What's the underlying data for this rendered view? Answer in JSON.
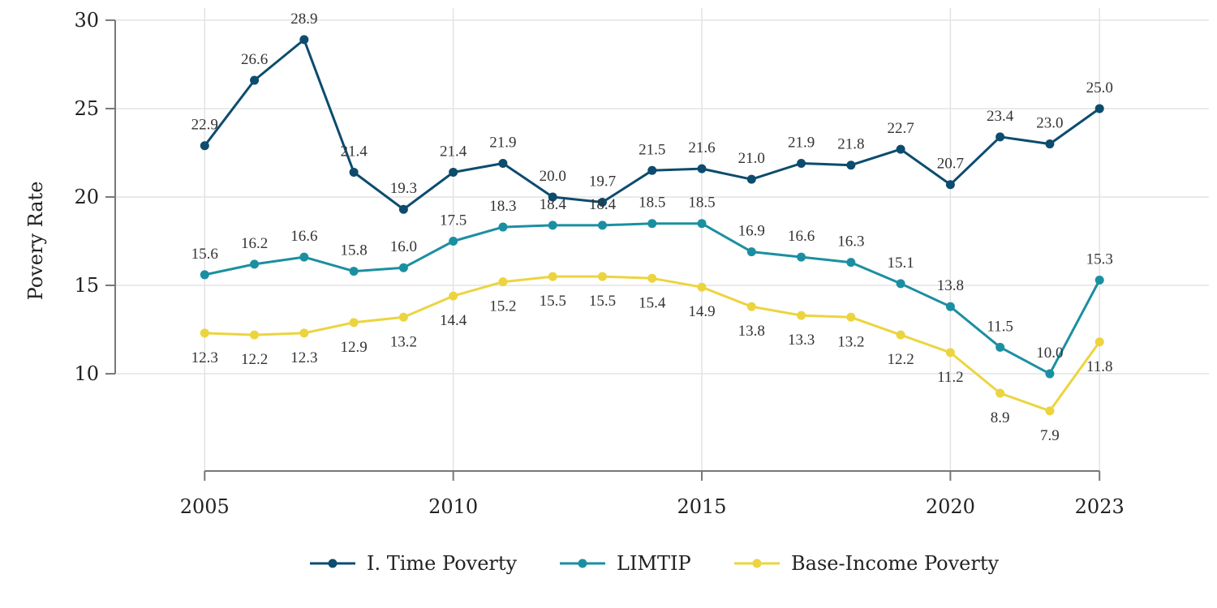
{
  "chart_data": {
    "type": "line",
    "title": "",
    "xlabel": "",
    "ylabel": "Povery Rate",
    "x": [
      2005,
      2006,
      2007,
      2008,
      2009,
      2010,
      2011,
      2012,
      2013,
      2014,
      2015,
      2016,
      2017,
      2018,
      2019,
      2020,
      2021,
      2022,
      2023
    ],
    "xticks": [
      2005,
      2010,
      2015,
      2020,
      2023
    ],
    "yticks": [
      10,
      15,
      20,
      25,
      30
    ],
    "xlim": [
      2003.2,
      2025.2
    ],
    "ylim": [
      4.5,
      30.5
    ],
    "grid": true,
    "legend_position": "bottom",
    "series": [
      {
        "name": "I. Time Poverty",
        "color": "#0d4c6e",
        "label_position": "above",
        "values": [
          22.9,
          26.6,
          28.9,
          21.4,
          19.3,
          21.4,
          21.9,
          20.0,
          19.7,
          21.5,
          21.6,
          21.0,
          21.9,
          21.8,
          22.7,
          20.7,
          23.4,
          23.0,
          25.0
        ],
        "labels": [
          "22.9",
          "26.6",
          "28.9",
          "21.4",
          "19.3",
          "21.4",
          "21.9",
          "20.0",
          "19.7",
          "21.5",
          "21.6",
          "21.0",
          "21.9",
          "21.8",
          "22.7",
          "20.7",
          "23.4",
          "23.0",
          "25.0"
        ]
      },
      {
        "name": "LIMTIP",
        "color": "#1b8fa2",
        "label_position": "above",
        "values": [
          15.6,
          16.2,
          16.6,
          15.8,
          16.0,
          17.5,
          18.3,
          18.4,
          18.4,
          18.5,
          18.5,
          16.9,
          16.6,
          16.3,
          15.1,
          13.8,
          11.5,
          10.0,
          15.3
        ],
        "labels": [
          "15.6",
          "16.2",
          "16.6",
          "15.8",
          "16.0",
          "17.5",
          "18.3",
          "18.4",
          "18.4",
          "18.5",
          "18.5",
          "16.9",
          "16.6",
          "16.3",
          "15.1",
          "13.8",
          "11.5",
          "10.0",
          "15.3"
        ]
      },
      {
        "name": "Base-Income Poverty",
        "color": "#ecd43f",
        "label_position": "below",
        "values": [
          12.3,
          12.2,
          12.3,
          12.9,
          13.2,
          14.4,
          15.2,
          15.5,
          15.5,
          15.4,
          14.9,
          13.8,
          13.3,
          13.2,
          12.2,
          11.2,
          8.9,
          7.9,
          11.8
        ],
        "labels": [
          "12.3",
          "12.2",
          "12.3",
          "12.9",
          "13.2",
          "14.4",
          "15.2",
          "15.5",
          "15.5",
          "15.4",
          "14.9",
          "13.8",
          "13.3",
          "13.2",
          "12.2",
          "11.2",
          "8.9",
          "7.9",
          "11.8"
        ]
      }
    ]
  }
}
